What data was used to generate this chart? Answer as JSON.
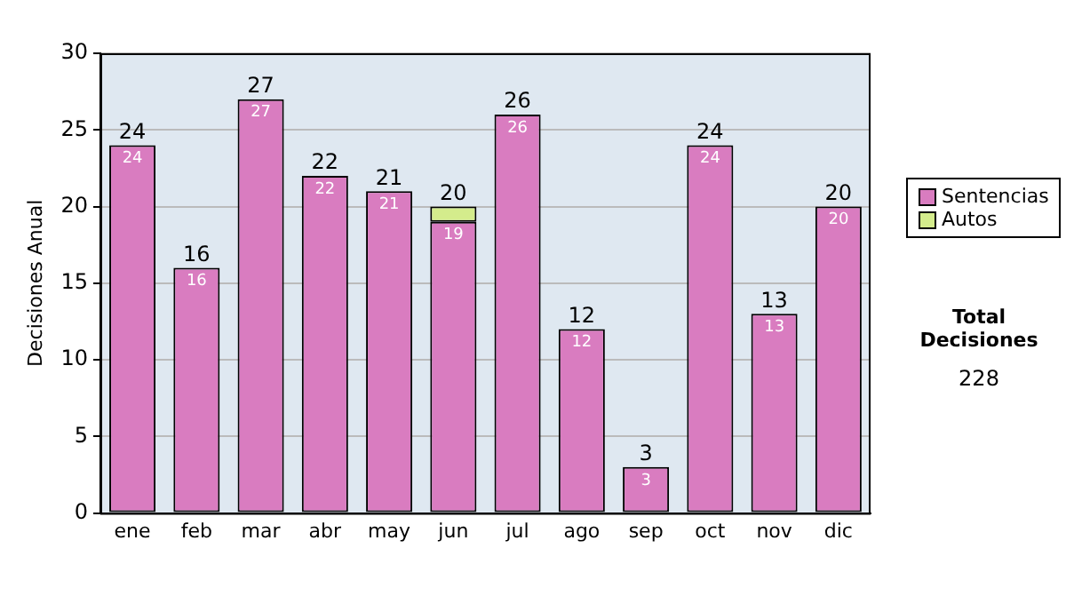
{
  "chart_data": {
    "type": "bar",
    "stacked": true,
    "ylabel": "Decisiones Anual",
    "categories": [
      "ene",
      "feb",
      "mar",
      "abr",
      "may",
      "jun",
      "jul",
      "ago",
      "sep",
      "oct",
      "nov",
      "dic"
    ],
    "series": [
      {
        "name": "Sentencias",
        "color": "#d97cc0",
        "values": [
          24,
          16,
          27,
          22,
          21,
          19,
          26,
          12,
          3,
          24,
          13,
          20
        ],
        "value_labels": [
          "24",
          "16",
          "27",
          "22",
          "21",
          "19",
          "26",
          "12",
          "3",
          "24",
          "13",
          "20"
        ]
      },
      {
        "name": "Autos",
        "color": "#d4ec8c",
        "values": [
          null,
          null,
          null,
          null,
          null,
          1,
          null,
          null,
          null,
          null,
          null,
          null
        ]
      }
    ],
    "totals": [
      "24",
      "16",
      "27",
      "22",
      "21",
      "20",
      "26",
      "12",
      "3",
      "24",
      "13",
      "20"
    ],
    "ylim": [
      0,
      30
    ],
    "yticks": [
      0,
      5,
      10,
      15,
      20,
      25,
      30
    ],
    "grid": "y",
    "legend": "right",
    "annotations": [
      "Total Decisiones",
      "228"
    ]
  }
}
